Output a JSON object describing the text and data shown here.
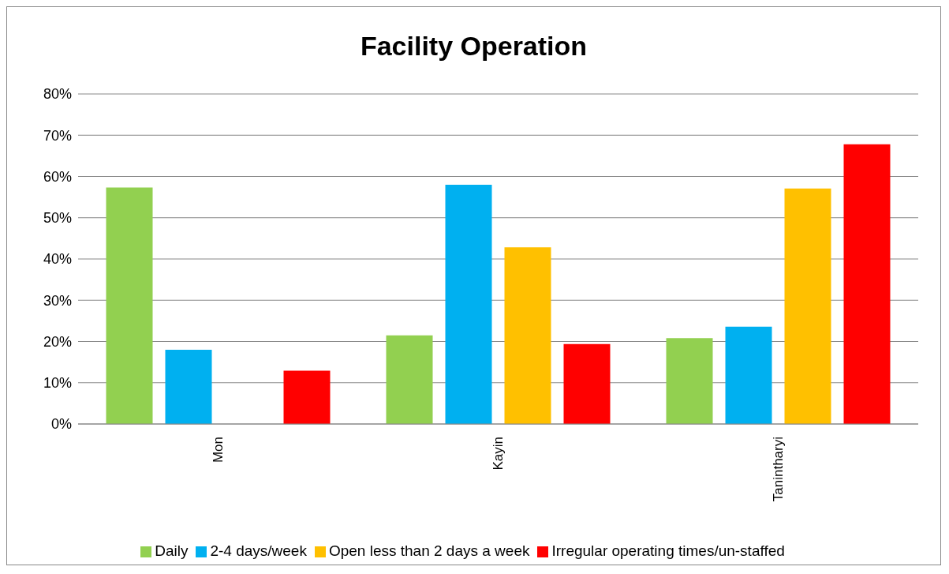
{
  "chart_data": {
    "type": "bar",
    "title": "Facility Operation",
    "categories": [
      "Mon",
      "Kayin",
      "Tanintharyi"
    ],
    "series": [
      {
        "name": "Daily",
        "color": "#92d050",
        "values": [
          57.3,
          21.5,
          20.8
        ]
      },
      {
        "name": "2-4 days/week",
        "color": "#00b0f0",
        "values": [
          18,
          58,
          23.6
        ]
      },
      {
        "name": "Open less than 2 days a week",
        "color": "#ffc000",
        "values": [
          0,
          42.8,
          57.1
        ]
      },
      {
        "name": "Irregular operating times/un-staffed",
        "color": "#ff0000",
        "values": [
          12.9,
          19.4,
          67.8
        ]
      }
    ],
    "ylim": [
      0,
      80
    ],
    "yticks": [
      {
        "value": 0,
        "label": "0%"
      },
      {
        "value": 10,
        "label": "10%"
      },
      {
        "value": 20,
        "label": "20%"
      },
      {
        "value": 30,
        "label": "30%"
      },
      {
        "value": 40,
        "label": "40%"
      },
      {
        "value": 50,
        "label": "50%"
      },
      {
        "value": 60,
        "label": "60%"
      },
      {
        "value": 70,
        "label": "70%"
      },
      {
        "value": 80,
        "label": "80%"
      }
    ],
    "grid": "y",
    "legend": "bottom"
  }
}
